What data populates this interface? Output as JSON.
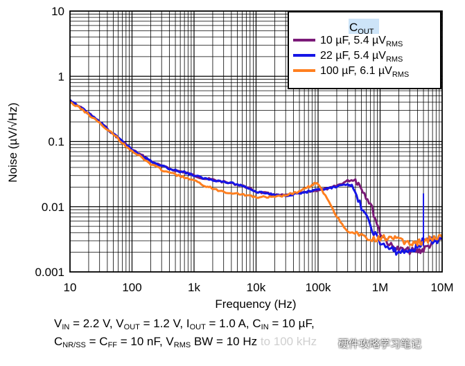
{
  "chart_data": {
    "type": "line",
    "title": "",
    "xlabel": "Frequency (Hz)",
    "ylabel": "Noise (µV/√Hz)",
    "xscale": "log",
    "yscale": "log",
    "xlim": [
      10,
      10000000
    ],
    "ylim": [
      0.001,
      10
    ],
    "x_ticks": [
      {
        "v": 10,
        "label": "10"
      },
      {
        "v": 100,
        "label": "100"
      },
      {
        "v": 1000,
        "label": "1k"
      },
      {
        "v": 10000,
        "label": "10k"
      },
      {
        "v": 100000,
        "label": "100k"
      },
      {
        "v": 1000000,
        "label": "1M"
      },
      {
        "v": 10000000,
        "label": "10M"
      }
    ],
    "y_ticks": [
      {
        "v": 0.001,
        "label": "0.001"
      },
      {
        "v": 0.01,
        "label": "0.01"
      },
      {
        "v": 0.1,
        "label": "0.1"
      },
      {
        "v": 1,
        "label": "1"
      },
      {
        "v": 10,
        "label": "10"
      }
    ],
    "grid": true,
    "legend": {
      "title_main": "C",
      "title_sub": "OUT",
      "position": "top-right",
      "entries": [
        {
          "main": "10 µF, 5.4 µV",
          "sub": "RMS"
        },
        {
          "main": "22 µF, 5.4 µV",
          "sub": "RMS"
        },
        {
          "main": "100 µF, 6.1  µV",
          "sub": "RMS"
        }
      ]
    },
    "series": [
      {
        "name": "10 µF, 5.4 µVRMS",
        "color": "#7b1a78",
        "points": [
          [
            10,
            0.42
          ],
          [
            15,
            0.33
          ],
          [
            20,
            0.27
          ],
          [
            30,
            0.2
          ],
          [
            50,
            0.13
          ],
          [
            70,
            0.1
          ],
          [
            100,
            0.075
          ],
          [
            150,
            0.06
          ],
          [
            200,
            0.05
          ],
          [
            300,
            0.042
          ],
          [
            500,
            0.036
          ],
          [
            700,
            0.034
          ],
          [
            1000,
            0.03
          ],
          [
            1500,
            0.027
          ],
          [
            2000,
            0.026
          ],
          [
            3000,
            0.024
          ],
          [
            5000,
            0.022
          ],
          [
            7000,
            0.02
          ],
          [
            10000,
            0.017
          ],
          [
            15000,
            0.016
          ],
          [
            20000,
            0.015
          ],
          [
            30000,
            0.015
          ],
          [
            50000,
            0.016
          ],
          [
            70000,
            0.017
          ],
          [
            100000,
            0.018
          ],
          [
            150000,
            0.019
          ],
          [
            200000,
            0.021
          ],
          [
            300000,
            0.025
          ],
          [
            400000,
            0.026
          ],
          [
            500000,
            0.02
          ],
          [
            700000,
            0.011
          ],
          [
            1000000,
            0.004
          ],
          [
            1500000,
            0.0025
          ],
          [
            2000000,
            0.0022
          ],
          [
            3000000,
            0.0021
          ],
          [
            4000000,
            0.0021
          ],
          [
            5000000,
            0.0022
          ],
          [
            7000000,
            0.0028
          ],
          [
            10000000,
            0.0033
          ]
        ]
      },
      {
        "name": "22 µF, 5.4 µVRMS",
        "color": "#1515e6",
        "points": [
          [
            10,
            0.42
          ],
          [
            15,
            0.33
          ],
          [
            20,
            0.27
          ],
          [
            30,
            0.2
          ],
          [
            50,
            0.13
          ],
          [
            70,
            0.1
          ],
          [
            100,
            0.075
          ],
          [
            150,
            0.06
          ],
          [
            200,
            0.05
          ],
          [
            300,
            0.042
          ],
          [
            500,
            0.036
          ],
          [
            700,
            0.034
          ],
          [
            1000,
            0.03
          ],
          [
            1500,
            0.027
          ],
          [
            2000,
            0.026
          ],
          [
            3000,
            0.024
          ],
          [
            5000,
            0.022
          ],
          [
            7000,
            0.02
          ],
          [
            10000,
            0.017
          ],
          [
            15000,
            0.016
          ],
          [
            20000,
            0.015
          ],
          [
            30000,
            0.015
          ],
          [
            50000,
            0.016
          ],
          [
            70000,
            0.017
          ],
          [
            100000,
            0.018
          ],
          [
            150000,
            0.019
          ],
          [
            200000,
            0.02
          ],
          [
            300000,
            0.022
          ],
          [
            350000,
            0.021
          ],
          [
            500000,
            0.01
          ],
          [
            700000,
            0.005
          ],
          [
            1000000,
            0.0028
          ],
          [
            1500000,
            0.0022
          ],
          [
            2000000,
            0.002
          ],
          [
            3000000,
            0.0021
          ],
          [
            4000000,
            0.0024
          ],
          [
            5000000,
            0.003
          ],
          [
            7000000,
            0.003
          ],
          [
            10000000,
            0.0032
          ]
        ]
      },
      {
        "name": "100 µF, 6.1  µVRMS",
        "color": "#ff7f1f",
        "points": [
          [
            10,
            0.4
          ],
          [
            15,
            0.32
          ],
          [
            20,
            0.26
          ],
          [
            30,
            0.19
          ],
          [
            50,
            0.13
          ],
          [
            70,
            0.095
          ],
          [
            100,
            0.072
          ],
          [
            150,
            0.055
          ],
          [
            200,
            0.045
          ],
          [
            300,
            0.037
          ],
          [
            500,
            0.031
          ],
          [
            700,
            0.028
          ],
          [
            1000,
            0.025
          ],
          [
            1500,
            0.021
          ],
          [
            2000,
            0.019
          ],
          [
            3000,
            0.017
          ],
          [
            5000,
            0.016
          ],
          [
            7000,
            0.015
          ],
          [
            10000,
            0.014
          ],
          [
            15000,
            0.014
          ],
          [
            20000,
            0.014
          ],
          [
            30000,
            0.015
          ],
          [
            50000,
            0.017
          ],
          [
            70000,
            0.02
          ],
          [
            90000,
            0.023
          ],
          [
            100000,
            0.022
          ],
          [
            150000,
            0.012
          ],
          [
            200000,
            0.007
          ],
          [
            300000,
            0.0042
          ],
          [
            500000,
            0.0035
          ],
          [
            700000,
            0.003
          ],
          [
            1000000,
            0.0032
          ],
          [
            1500000,
            0.0035
          ],
          [
            2000000,
            0.003
          ],
          [
            3000000,
            0.0028
          ],
          [
            4000000,
            0.0028
          ],
          [
            5000000,
            0.003
          ],
          [
            7000000,
            0.0032
          ],
          [
            10000000,
            0.0034
          ]
        ]
      }
    ],
    "spike": {
      "x": 5000000,
      "y_top": 0.016,
      "color": "#1515e6"
    }
  },
  "caption": {
    "line1": [
      {
        "t": "V"
      },
      {
        "t": "IN",
        "sub": true
      },
      {
        "t": " = 2.2 V, V"
      },
      {
        "t": "OUT",
        "sub": true
      },
      {
        "t": " = 1.2 V, I"
      },
      {
        "t": "OUT",
        "sub": true
      },
      {
        "t": " = 1.0 A, C"
      },
      {
        "t": "IN",
        "sub": true
      },
      {
        "t": " = 10 µF,"
      }
    ],
    "line2": [
      {
        "t": "C"
      },
      {
        "t": "NR/SS",
        "sub": true
      },
      {
        "t": " = C"
      },
      {
        "t": "FF",
        "sub": true
      },
      {
        "t": " = 10 nF, V"
      },
      {
        "t": "RMS",
        "sub": true
      },
      {
        "t": " BW = 10 Hz "
      },
      {
        "t": "to 100 kHz",
        "hidden": true
      }
    ]
  },
  "watermark": "硬件攻略学习笔记"
}
